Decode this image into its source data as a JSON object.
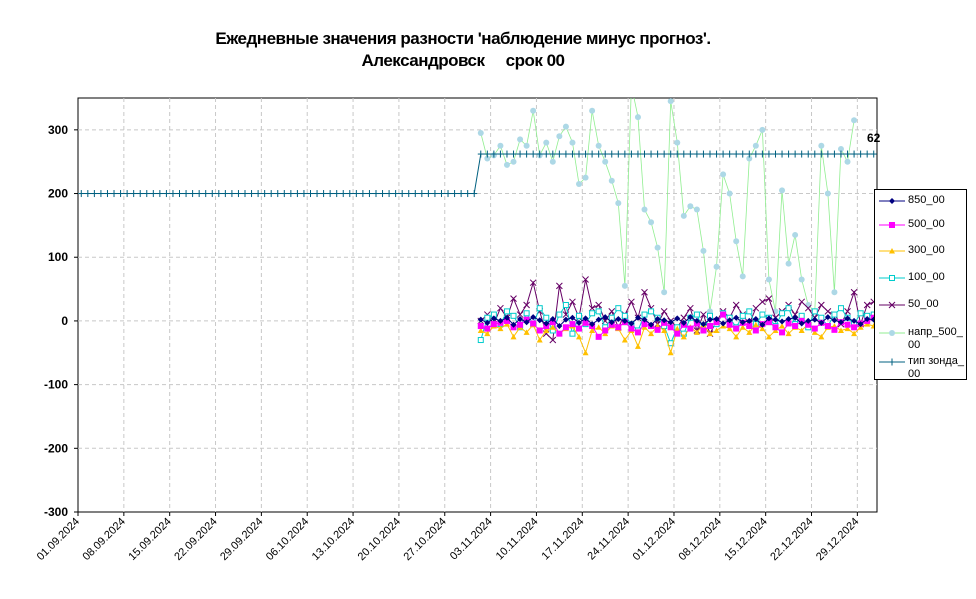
{
  "chart_data": {
    "type": "line",
    "title": [
      "Ежедневные значения разности 'наблюдение минус прогноз'.",
      "Александровск     срок 00"
    ],
    "ylim": [
      -300,
      350
    ],
    "yticks": [
      -300,
      -200,
      -100,
      0,
      100,
      200,
      300
    ],
    "grid": true,
    "legend_position": "right",
    "x_tick_labels": [
      "01.09.2024",
      "08.09.2024",
      "15.09.2024",
      "22.09.2024",
      "29.09.2024",
      "06.10.2024",
      "13.10.2024",
      "20.10.2024",
      "27.10.2024",
      "03.11.2024",
      "10.11.2024",
      "17.11.2024",
      "24.11.2024",
      "01.12.2024",
      "08.12.2024",
      "15.12.2024",
      "22.12.2024",
      "29.12.2024"
    ],
    "x_days": 122,
    "annotation": "62",
    "series": [
      {
        "name": "850_00",
        "color": "#000080",
        "marker": "diamond",
        "start": 61,
        "values": [
          2,
          -3,
          4,
          0,
          5,
          -6,
          3,
          -2,
          6,
          1,
          -4,
          3,
          -8,
          2,
          5,
          -3,
          4,
          -5,
          2,
          6,
          -2,
          3,
          0,
          -4,
          5,
          2,
          -6,
          3,
          1,
          -2,
          4,
          -3,
          6,
          0,
          -5,
          2,
          3,
          -4,
          1,
          5,
          -2,
          0,
          3,
          -6,
          4,
          2,
          -1,
          3,
          5,
          -4,
          0,
          2,
          -3,
          6,
          1,
          -2,
          4,
          0,
          -5,
          3,
          2
        ]
      },
      {
        "name": "500_00",
        "color": "#FF00FF",
        "marker": "square",
        "start": 61,
        "values": [
          -8,
          -12,
          -5,
          -3,
          0,
          -10,
          -6,
          2,
          -4,
          -15,
          -8,
          -2,
          -20,
          -10,
          -5,
          -12,
          -3,
          -8,
          -25,
          -15,
          -6,
          -10,
          -2,
          -12,
          -18,
          -5,
          -8,
          -14,
          -3,
          -10,
          -20,
          -6,
          -12,
          -4,
          -15,
          -8,
          -2,
          10,
          -6,
          -12,
          -3,
          -8,
          -15,
          -5,
          -2,
          -10,
          -18,
          -4,
          -8,
          0,
          -6,
          -12,
          -3,
          -8,
          -14,
          -2,
          -6,
          -10,
          -4,
          0,
          5
        ]
      },
      {
        "name": "300_00",
        "color": "#FFC000",
        "marker": "triangle",
        "start": 61,
        "values": [
          -15,
          -20,
          -8,
          -12,
          -5,
          -25,
          -10,
          -18,
          -6,
          -30,
          -15,
          -10,
          -20,
          -12,
          -8,
          -25,
          -50,
          -15,
          -10,
          -20,
          -8,
          -12,
          -30,
          -15,
          -40,
          -10,
          -20,
          -8,
          -15,
          -50,
          -12,
          -25,
          -10,
          -18,
          -6,
          -20,
          -15,
          -8,
          -12,
          -25,
          -10,
          -18,
          -6,
          -12,
          -25,
          -15,
          -8,
          -20,
          -10,
          -15,
          -5,
          -18,
          -25,
          -10,
          -8,
          -15,
          -12,
          -20,
          -10,
          -5,
          -8
        ]
      },
      {
        "name": "100_00",
        "color": "#00CCCC",
        "marker": "square-open",
        "start": 61,
        "values": [
          -30,
          5,
          10,
          -5,
          15,
          8,
          -10,
          12,
          -5,
          20,
          5,
          -15,
          10,
          25,
          -20,
          8,
          -5,
          12,
          15,
          -10,
          5,
          20,
          8,
          -5,
          -15,
          10,
          15,
          5,
          -8,
          -35,
          -10,
          -20,
          5,
          10,
          -15,
          8,
          -5,
          12,
          5,
          -10,
          8,
          15,
          -5,
          10,
          5,
          -8,
          12,
          20,
          -5,
          8,
          -10,
          15,
          5,
          -8,
          10,
          20,
          5,
          -5,
          12,
          8,
          10
        ]
      },
      {
        "name": "50_00",
        "color": "#660066",
        "marker": "x",
        "start": 61,
        "values": [
          0,
          10,
          -5,
          20,
          5,
          35,
          10,
          25,
          60,
          15,
          -20,
          -30,
          55,
          10,
          30,
          5,
          65,
          20,
          25,
          0,
          15,
          -10,
          10,
          30,
          5,
          45,
          20,
          -5,
          15,
          0,
          -10,
          5,
          20,
          -15,
          10,
          -20,
          0,
          15,
          5,
          25,
          10,
          -5,
          20,
          30,
          35,
          5,
          15,
          25,
          10,
          30,
          20,
          5,
          25,
          15,
          10,
          -5,
          15,
          45,
          -5,
          25,
          30
        ]
      },
      {
        "name": "напр_500_00",
        "color": "#90EE90",
        "marker": "circle",
        "marker_color": "#ADD8E6",
        "start": 61,
        "values": [
          295,
          255,
          260,
          275,
          245,
          250,
          285,
          275,
          330,
          260,
          280,
          250,
          290,
          305,
          280,
          215,
          225,
          330,
          275,
          250,
          220,
          185,
          55,
          370,
          320,
          175,
          155,
          115,
          45,
          345,
          280,
          165,
          180,
          175,
          110,
          15,
          85,
          230,
          200,
          125,
          70,
          255,
          275,
          300,
          65,
          15,
          205,
          90,
          135,
          65,
          25,
          15,
          275,
          200,
          45,
          270,
          250,
          315
        ]
      },
      {
        "name": "тип зонда_00",
        "color": "#006080",
        "marker": "plus",
        "start": 0,
        "values": [
          200,
          200,
          200,
          200,
          200,
          200,
          200,
          200,
          200,
          200,
          200,
          200,
          200,
          200,
          200,
          200,
          200,
          200,
          200,
          200,
          200,
          200,
          200,
          200,
          200,
          200,
          200,
          200,
          200,
          200,
          200,
          200,
          200,
          200,
          200,
          200,
          200,
          200,
          200,
          200,
          200,
          200,
          200,
          200,
          200,
          200,
          200,
          200,
          200,
          200,
          200,
          200,
          200,
          200,
          200,
          200,
          200,
          200,
          200,
          200,
          200,
          262,
          262,
          262,
          262,
          262,
          262,
          262,
          262,
          262,
          262,
          262,
          262,
          262,
          262,
          262,
          262,
          262,
          262,
          262,
          262,
          262,
          262,
          262,
          262,
          262,
          262,
          262,
          262,
          262,
          262,
          262,
          262,
          262,
          262,
          262,
          262,
          262,
          262,
          262,
          262,
          262,
          262,
          262,
          262,
          262,
          262,
          262,
          262,
          262,
          262,
          262,
          262,
          262,
          262,
          262,
          262,
          262,
          262,
          262,
          262,
          262
        ]
      }
    ]
  }
}
